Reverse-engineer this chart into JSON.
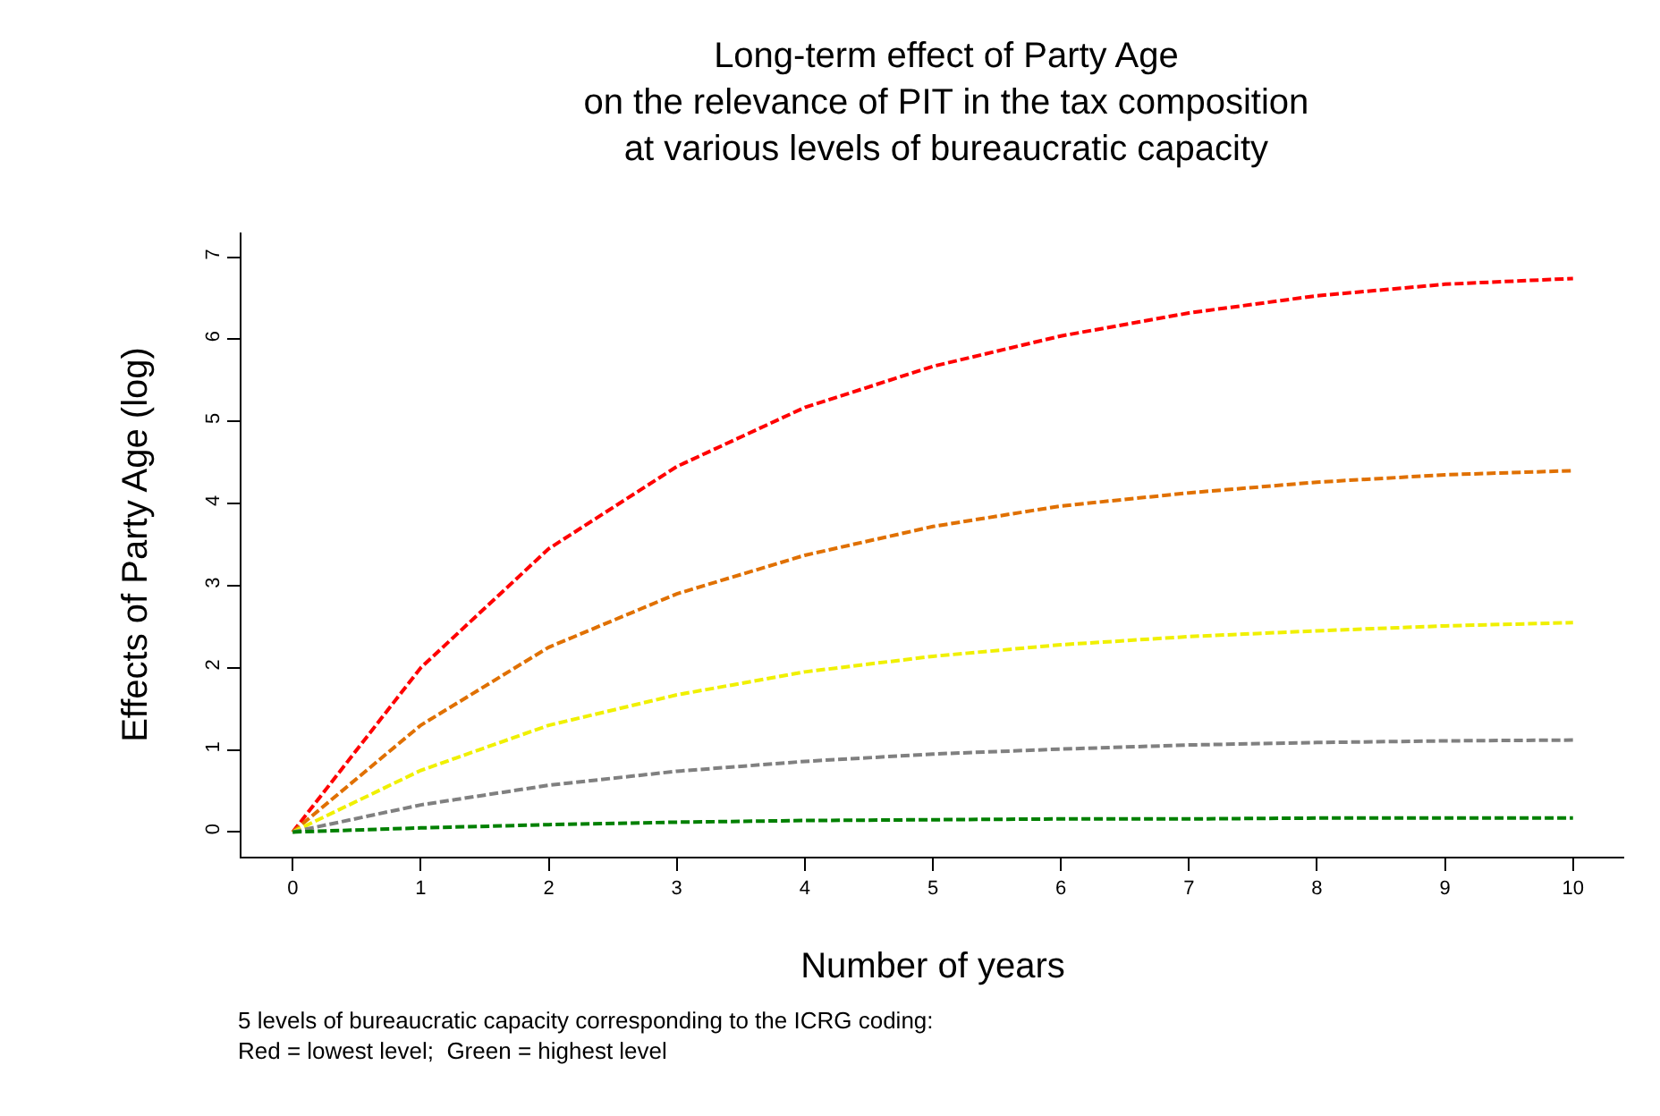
{
  "chart_data": {
    "type": "line",
    "title": "Long-term effect of Party Age\non the relevance of PIT in the tax composition\nat various levels of bureaucratic capacity",
    "xlabel": "Number of years",
    "ylabel": "Effects of Party Age (log)",
    "x": [
      0,
      1,
      2,
      3,
      4,
      5,
      6,
      7,
      8,
      9,
      10
    ],
    "series": [
      {
        "color": "#ff0000",
        "values": [
          0,
          2.0,
          3.45,
          4.45,
          5.17,
          5.67,
          6.04,
          6.32,
          6.53,
          6.67,
          6.74
        ]
      },
      {
        "color": "#e07000",
        "values": [
          0,
          1.3,
          2.25,
          2.9,
          3.37,
          3.72,
          3.97,
          4.13,
          4.26,
          4.35,
          4.4
        ]
      },
      {
        "color": "#f0f000",
        "values": [
          0,
          0.75,
          1.3,
          1.67,
          1.95,
          2.14,
          2.28,
          2.38,
          2.45,
          2.51,
          2.55
        ]
      },
      {
        "color": "#808080",
        "values": [
          0,
          0.33,
          0.57,
          0.74,
          0.86,
          0.95,
          1.01,
          1.06,
          1.09,
          1.11,
          1.12
        ]
      },
      {
        "color": "#008000",
        "values": [
          0,
          0.05,
          0.09,
          0.12,
          0.14,
          0.15,
          0.16,
          0.16,
          0.17,
          0.17,
          0.17
        ]
      }
    ],
    "xlim": [
      -0.4,
      10.4
    ],
    "ylim": [
      -0.3,
      7.3
    ],
    "xticks": [
      0,
      1,
      2,
      3,
      4,
      5,
      6,
      7,
      8,
      9,
      10
    ],
    "yticks": [
      0,
      1,
      2,
      3,
      4,
      5,
      6,
      7
    ],
    "grid": false,
    "marker": "none",
    "line_style": "dashed",
    "annotations": [
      "5 levels of bureaucratic capacity corresponding to the ICRG coding:\nRed = lowest level;  Green = highest level"
    ]
  }
}
